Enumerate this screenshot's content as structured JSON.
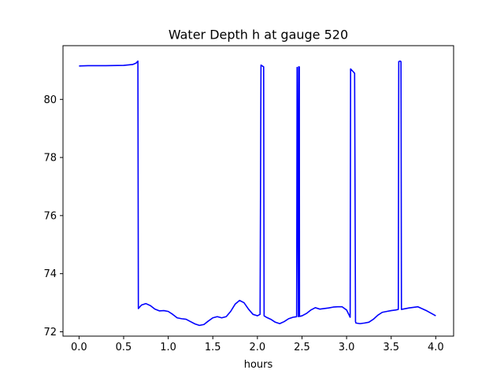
{
  "chart_data": {
    "type": "line",
    "title": "Water Depth h at gauge 520",
    "xlabel": "hours",
    "ylabel": "",
    "xlim": [
      -0.18,
      4.2
    ],
    "ylim": [
      71.85,
      81.85
    ],
    "xticks": [
      0.0,
      0.5,
      1.0,
      1.5,
      2.0,
      2.5,
      3.0,
      3.5,
      4.0
    ],
    "xtick_labels": [
      "0.0",
      "0.5",
      "1.0",
      "1.5",
      "2.0",
      "2.5",
      "3.0",
      "3.5",
      "4.0"
    ],
    "yticks": [
      72,
      74,
      76,
      78,
      80
    ],
    "ytick_labels": [
      "72",
      "74",
      "76",
      "78",
      "80"
    ],
    "grid": false,
    "series": [
      {
        "color": "#0000ff",
        "x": [
          0.0,
          0.1,
          0.3,
          0.5,
          0.6,
          0.64,
          0.66,
          0.665,
          0.7,
          0.75,
          0.8,
          0.85,
          0.9,
          0.95,
          1.0,
          1.05,
          1.1,
          1.15,
          1.2,
          1.25,
          1.3,
          1.35,
          1.4,
          1.45,
          1.5,
          1.55,
          1.6,
          1.65,
          1.7,
          1.75,
          1.8,
          1.85,
          1.9,
          1.95,
          2.0,
          2.03,
          2.04,
          2.045,
          2.07,
          2.075,
          2.1,
          2.15,
          2.2,
          2.25,
          2.3,
          2.35,
          2.4,
          2.44,
          2.445,
          2.46,
          2.462,
          2.47,
          2.472,
          2.5,
          2.55,
          2.6,
          2.65,
          2.7,
          2.75,
          2.8,
          2.85,
          2.9,
          2.95,
          3.0,
          3.04,
          3.045,
          3.09,
          3.1,
          3.105,
          3.15,
          3.2,
          3.25,
          3.3,
          3.35,
          3.4,
          3.45,
          3.5,
          3.55,
          3.58,
          3.585,
          3.6,
          3.61,
          3.615,
          3.7,
          3.8,
          3.9,
          4.0
        ],
        "y": [
          81.15,
          81.16,
          81.16,
          81.17,
          81.2,
          81.25,
          81.32,
          72.8,
          72.92,
          72.97,
          72.9,
          72.78,
          72.72,
          72.73,
          72.7,
          72.6,
          72.48,
          72.45,
          72.43,
          72.35,
          72.27,
          72.22,
          72.25,
          72.37,
          72.48,
          72.52,
          72.48,
          72.52,
          72.7,
          72.95,
          73.08,
          73.0,
          72.78,
          72.6,
          72.55,
          72.6,
          81.18,
          81.17,
          81.12,
          72.55,
          72.5,
          72.43,
          72.33,
          72.28,
          72.35,
          72.45,
          72.5,
          72.52,
          81.1,
          72.52,
          81.12,
          81.12,
          72.53,
          72.55,
          72.63,
          72.75,
          72.83,
          72.78,
          72.8,
          72.82,
          72.85,
          72.86,
          72.86,
          72.75,
          72.5,
          81.05,
          80.9,
          72.35,
          72.3,
          72.28,
          72.3,
          72.33,
          72.43,
          72.57,
          72.67,
          72.7,
          72.73,
          72.75,
          72.77,
          81.3,
          81.32,
          81.3,
          72.77,
          72.82,
          72.86,
          72.72,
          72.55
        ]
      }
    ]
  }
}
